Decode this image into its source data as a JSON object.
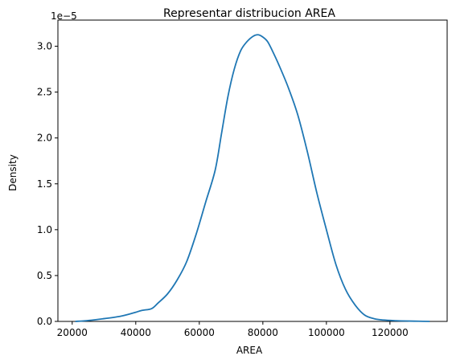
{
  "chart_data": {
    "type": "line",
    "title": "Representar distribucion AREA",
    "xlabel": "AREA",
    "ylabel": "Density",
    "y_offset_label": "1e−5",
    "xlim": [
      15500,
      138000
    ],
    "ylim": [
      0,
      3.285
    ],
    "x_ticks": [
      20000,
      40000,
      60000,
      80000,
      100000,
      120000
    ],
    "x_tick_labels": [
      "20000",
      "40000",
      "60000",
      "80000",
      "100000",
      "120000"
    ],
    "y_ticks": [
      0.0,
      0.5,
      1.0,
      1.5,
      2.0,
      2.5,
      3.0
    ],
    "y_tick_labels": [
      "0.0",
      "0.5",
      "1.0",
      "1.5",
      "2.0",
      "2.5",
      "3.0"
    ],
    "grid": false,
    "series": [
      {
        "name": "AREA",
        "color": "#1f77b4",
        "x": [
          21000,
          25000,
          30000,
          35000,
          38000,
          40000,
          42000,
          45000,
          47000,
          50000,
          53000,
          56000,
          59000,
          62000,
          65000,
          67000,
          69000,
          71000,
          73000,
          75000,
          77000,
          78500,
          80000,
          81500,
          83000,
          85000,
          88000,
          91000,
          94000,
          97000,
          100000,
          103000,
          106000,
          109000,
          112000,
          115000,
          118000,
          122000,
          126000,
          129000,
          132500
        ],
        "values": [
          0.0,
          0.01,
          0.03,
          0.055,
          0.08,
          0.1,
          0.12,
          0.14,
          0.2,
          0.3,
          0.45,
          0.65,
          0.95,
          1.3,
          1.65,
          2.05,
          2.45,
          2.75,
          2.95,
          3.05,
          3.11,
          3.125,
          3.1,
          3.05,
          2.95,
          2.8,
          2.55,
          2.25,
          1.85,
          1.4,
          1.0,
          0.62,
          0.35,
          0.18,
          0.07,
          0.03,
          0.015,
          0.008,
          0.004,
          0.002,
          0.0
        ]
      }
    ]
  }
}
